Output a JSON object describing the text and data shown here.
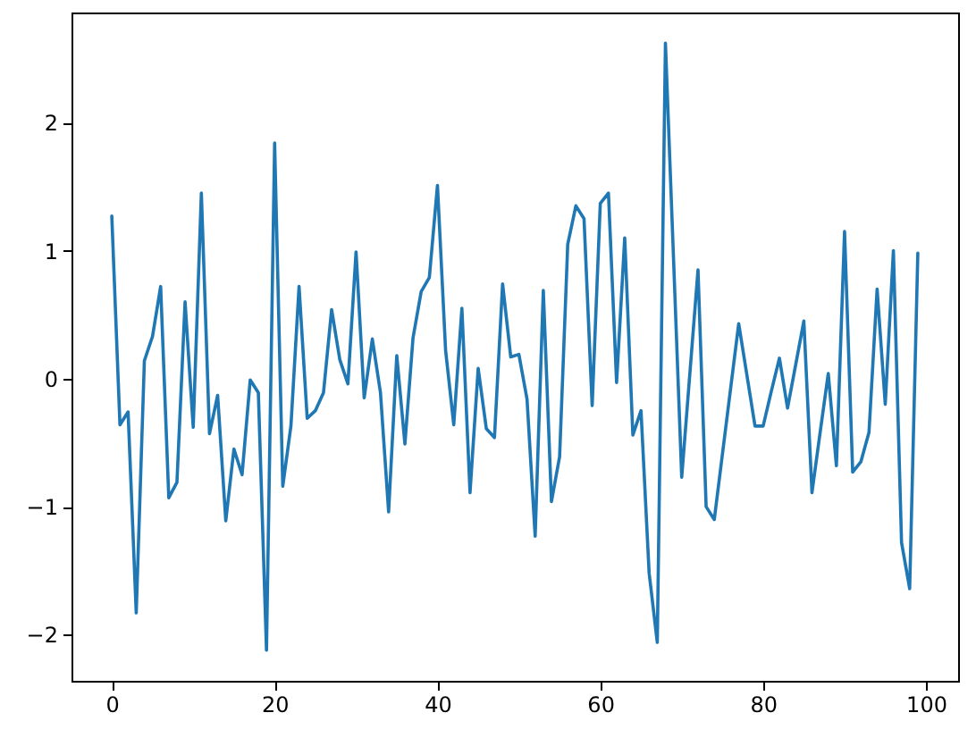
{
  "chart_data": {
    "type": "line",
    "x": [
      0,
      1,
      2,
      3,
      4,
      5,
      6,
      7,
      8,
      9,
      10,
      11,
      12,
      13,
      14,
      15,
      16,
      17,
      18,
      19,
      20,
      21,
      22,
      23,
      24,
      25,
      26,
      27,
      28,
      29,
      30,
      31,
      32,
      33,
      34,
      35,
      36,
      37,
      38,
      39,
      40,
      41,
      42,
      43,
      44,
      45,
      46,
      47,
      48,
      49,
      50,
      51,
      52,
      53,
      54,
      55,
      56,
      57,
      58,
      59,
      60,
      61,
      62,
      63,
      64,
      65,
      66,
      67,
      68,
      69,
      70,
      71,
      72,
      73,
      74,
      75,
      76,
      77,
      78,
      79,
      80,
      81,
      82,
      83,
      84,
      85,
      86,
      87,
      88,
      89,
      90,
      91,
      92,
      93,
      94,
      95,
      96,
      97,
      98,
      99
    ],
    "values": [
      1.27,
      -0.36,
      -0.26,
      -1.83,
      0.14,
      0.33,
      0.72,
      -0.93,
      -0.81,
      0.6,
      -0.38,
      1.45,
      -0.43,
      -0.13,
      -1.11,
      -0.55,
      -0.75,
      -0.01,
      -0.11,
      -2.12,
      1.84,
      -0.84,
      -0.37,
      0.72,
      -0.31,
      -0.25,
      -0.11,
      0.54,
      0.15,
      -0.04,
      0.99,
      -0.15,
      0.31,
      -0.11,
      -1.04,
      0.18,
      -0.51,
      0.32,
      0.68,
      0.79,
      1.51,
      0.22,
      -0.36,
      0.55,
      -0.89,
      0.08,
      -0.39,
      -0.46,
      0.74,
      0.17,
      0.19,
      -0.16,
      -1.23,
      0.69,
      -0.96,
      -0.61,
      1.05,
      1.35,
      1.25,
      -0.21,
      1.37,
      1.45,
      -0.03,
      1.1,
      -0.44,
      -0.25,
      -1.52,
      -2.06,
      2.62,
      0.93,
      -0.77,
      0.04,
      0.85,
      -1.0,
      -1.1,
      -0.59,
      -0.08,
      0.43,
      0.03,
      -0.37,
      -0.37,
      -0.1,
      0.16,
      -0.23,
      0.11,
      0.45,
      -0.89,
      -0.42,
      0.04,
      -0.68,
      1.15,
      -0.73,
      -0.65,
      -0.42,
      0.7,
      -0.2,
      1.0,
      -1.28,
      -1.64,
      0.98
    ],
    "color": "#1f77b4",
    "xlim": [
      -4.95,
      103.95
    ],
    "ylim": [
      -2.36,
      2.86
    ],
    "xticks": [
      0,
      20,
      40,
      60,
      80,
      100
    ],
    "yticks": [
      -2,
      -1,
      0,
      1,
      2
    ]
  }
}
